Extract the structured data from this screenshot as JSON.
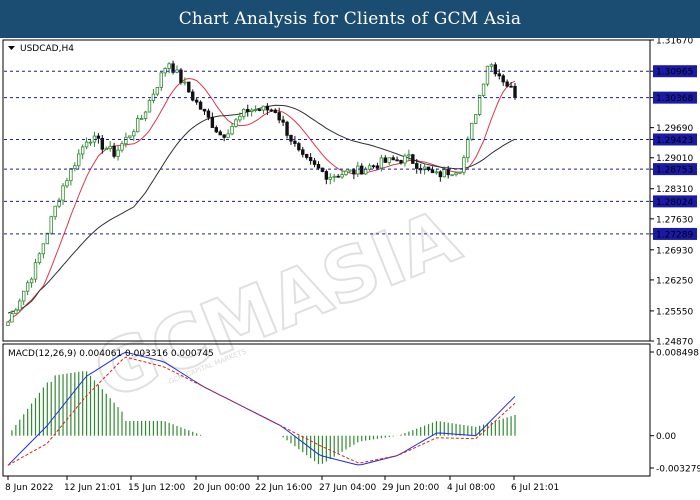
{
  "banner_title": "Chart Analysis for Clients of GCM Asia",
  "watermark": "GCMASIA",
  "watermark_small": "GCM CAPITAL MARKETS",
  "colors": {
    "banner": "#1b4c72",
    "bull_candle": "#2e8b2e",
    "bear_candle": "#111111",
    "ma_fast": "#d9384a",
    "ma_slow": "#303030",
    "level_line": "#1a1aa8",
    "level_label_bg": "#1a1aa8",
    "macd_line": "#1c2ee0",
    "signal_line": "#e02020",
    "histogram": "#2e8b2e"
  },
  "chart_data": [
    {
      "type": "candlestick",
      "title": "USDCAD,H4",
      "x_tick_labels": [
        "8 Jun 2022",
        "12 Jun 21:01",
        "15 Jun 12:00",
        "20 Jun 00:00",
        "22 Jun 16:00",
        "27 Jun 04:00",
        "29 Jun 20:00",
        "4 Jul 08:00",
        "6 Jul 21:01"
      ],
      "y_tick_labels": [
        "1.31670",
        "1.30965",
        "1.30368",
        "1.29690",
        "1.29423",
        "1.29010",
        "1.28753",
        "1.28310",
        "1.28024",
        "1.27630",
        "1.27289",
        "1.26930",
        "1.26250",
        "1.25550",
        "1.24870"
      ],
      "ylim": [
        1.2487,
        1.3167
      ],
      "grid": false,
      "horizontal_levels": [
        1.30965,
        1.30368,
        1.29423,
        1.28753,
        1.28024,
        1.27289
      ],
      "overlays": [
        "moving average (red)",
        "moving average (black)"
      ],
      "approx_close_path": [
        {
          "x": "8 Jun 2022",
          "y": 1.253
        },
        {
          "x": "10 Jun",
          "y": 1.265
        },
        {
          "x": "12 Jun 21:01",
          "y": 1.283
        },
        {
          "x": "14 Jun",
          "y": 1.295
        },
        {
          "x": "15 Jun 12:00",
          "y": 1.291
        },
        {
          "x": "17 Jun",
          "y": 1.299
        },
        {
          "x": "18 Jun",
          "y": 1.312
        },
        {
          "x": "20 Jun 00:00",
          "y": 1.303
        },
        {
          "x": "21 Jun",
          "y": 1.295
        },
        {
          "x": "22 Jun 16:00",
          "y": 1.301
        },
        {
          "x": "24 Jun",
          "y": 1.301
        },
        {
          "x": "26 Jun",
          "y": 1.29
        },
        {
          "x": "27 Jun 04:00",
          "y": 1.286
        },
        {
          "x": "28 Jun",
          "y": 1.287
        },
        {
          "x": "29 Jun 20:00",
          "y": 1.289
        },
        {
          "x": "1 Jul",
          "y": 1.29
        },
        {
          "x": "3 Jul",
          "y": 1.286
        },
        {
          "x": "4 Jul 08:00",
          "y": 1.288
        },
        {
          "x": "5 Jul",
          "y": 1.312
        },
        {
          "x": "6 Jul 21:01",
          "y": 1.3045
        }
      ]
    },
    {
      "type": "macd",
      "title": "MACD(12,26,9) 0.004061 0.003316 0.000745",
      "y_tick_labels": [
        "0.008498",
        "0.00",
        "-0.003279"
      ],
      "ylim": [
        -0.003279,
        0.008498
      ],
      "series": [
        {
          "name": "MACD",
          "values": [
            -0.003,
            0.001,
            0.006,
            0.0085,
            0.0075,
            0.005,
            0.003,
            0.001,
            -0.002,
            -0.003,
            -0.002,
            0.0003,
            0.0,
            0.004
          ]
        },
        {
          "name": "Signal",
          "values": [
            -0.003,
            -0.0008,
            0.004,
            0.008,
            0.007,
            0.005,
            0.003,
            0.001,
            -0.001,
            -0.0028,
            -0.002,
            -0.0002,
            -0.0003,
            0.0033
          ]
        }
      ],
      "histogram_last": 0.000745
    }
  ]
}
